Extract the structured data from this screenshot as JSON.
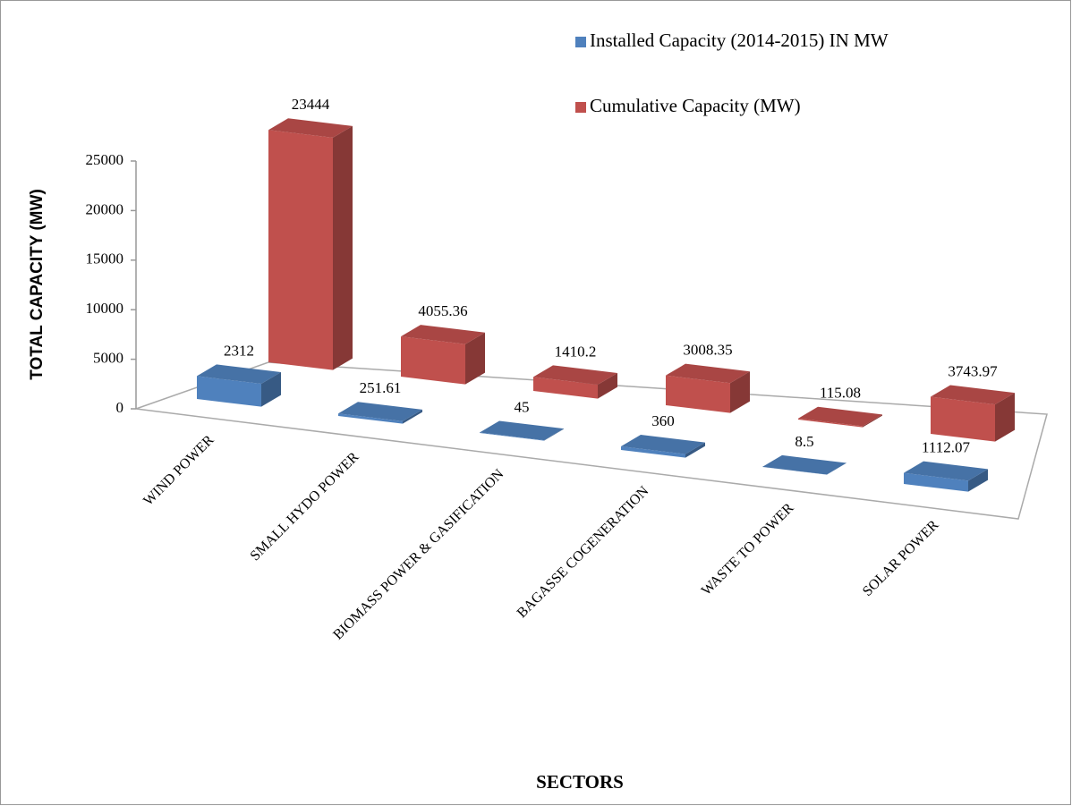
{
  "chart_data": {
    "type": "bar3d",
    "categories": [
      "WIND POWER",
      "SMALL HYDO POWER",
      "BIOMASS POWER & GASIFICATION",
      "BAGASSE COGENERATION",
      "WASTE TO POWER",
      "SOLAR POWER"
    ],
    "series": [
      {
        "name": "Installed Capacity (2014-2015) IN MW",
        "color": "#4f81bd",
        "values": [
          2312,
          251.61,
          45,
          360,
          8.5,
          1112.07
        ]
      },
      {
        "name": "Cumulative Capacity (MW)",
        "color": "#c0504d",
        "values": [
          23444,
          4055.36,
          1410.2,
          3008.35,
          115.08,
          3743.97
        ]
      }
    ],
    "ylim": [
      0,
      25000
    ],
    "yticks": [
      0,
      5000,
      10000,
      15000,
      20000,
      25000
    ],
    "y_label": "TOTAL CAPACITY (MW)",
    "x_label": "SECTORS",
    "legend": "top-right"
  }
}
